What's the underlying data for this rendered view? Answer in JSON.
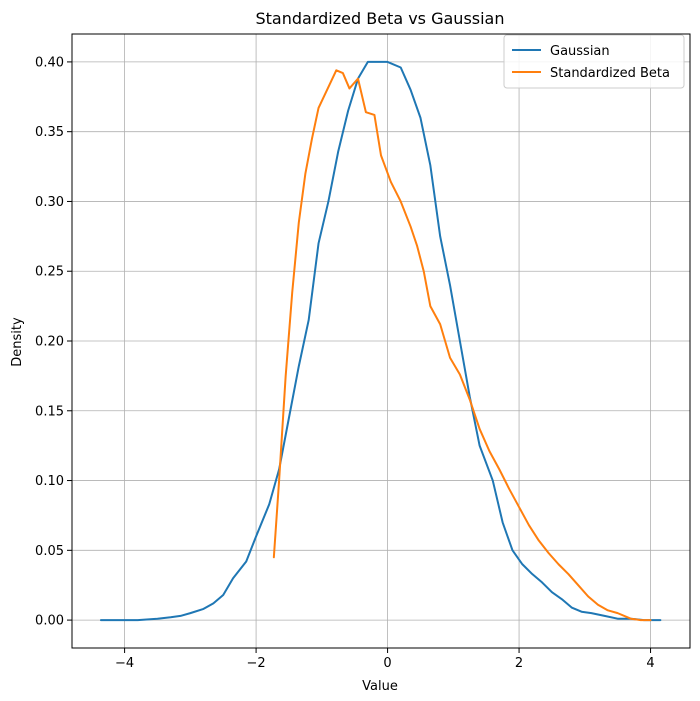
{
  "chart_data": {
    "type": "line",
    "title": "Standardized Beta vs Gaussian",
    "xlabel": "Value",
    "ylabel": "Density",
    "xlim": [
      -4.8,
      4.6
    ],
    "ylim": [
      -0.02,
      0.42
    ],
    "x_ticks": [
      -4,
      -2,
      0,
      2,
      4
    ],
    "x_tick_labels": [
      "−4",
      "−2",
      "0",
      "2",
      "4"
    ],
    "y_ticks": [
      0.0,
      0.05,
      0.1,
      0.15,
      0.2,
      0.25,
      0.3,
      0.35,
      0.4
    ],
    "y_tick_labels": [
      "0.00",
      "0.05",
      "0.10",
      "0.15",
      "0.20",
      "0.25",
      "0.30",
      "0.35",
      "0.40"
    ],
    "grid": true,
    "legend_position": "top-right",
    "series": [
      {
        "name": "Gaussian",
        "color": "#1f77b4",
        "points": [
          [
            -4.36,
            0.0
          ],
          [
            -4.0,
            0.0
          ],
          [
            -3.8,
            0.0
          ],
          [
            -3.5,
            0.001
          ],
          [
            -3.3,
            0.002
          ],
          [
            -3.15,
            0.003
          ],
          [
            -3.0,
            0.005
          ],
          [
            -2.8,
            0.008
          ],
          [
            -2.65,
            0.012
          ],
          [
            -2.5,
            0.018
          ],
          [
            -2.35,
            0.03
          ],
          [
            -2.15,
            0.042
          ],
          [
            -2.0,
            0.06
          ],
          [
            -1.8,
            0.083
          ],
          [
            -1.65,
            0.108
          ],
          [
            -1.5,
            0.145
          ],
          [
            -1.35,
            0.182
          ],
          [
            -1.2,
            0.215
          ],
          [
            -1.05,
            0.27
          ],
          [
            -0.9,
            0.3
          ],
          [
            -0.75,
            0.336
          ],
          [
            -0.6,
            0.365
          ],
          [
            -0.45,
            0.388
          ],
          [
            -0.3,
            0.4
          ],
          [
            -0.15,
            0.4
          ],
          [
            0.0,
            0.4
          ],
          [
            0.2,
            0.396
          ],
          [
            0.35,
            0.38
          ],
          [
            0.5,
            0.36
          ],
          [
            0.65,
            0.326
          ],
          [
            0.8,
            0.275
          ],
          [
            0.95,
            0.24
          ],
          [
            1.1,
            0.2
          ],
          [
            1.25,
            0.16
          ],
          [
            1.4,
            0.125
          ],
          [
            1.6,
            0.1
          ],
          [
            1.75,
            0.07
          ],
          [
            1.9,
            0.05
          ],
          [
            2.05,
            0.04
          ],
          [
            2.2,
            0.033
          ],
          [
            2.35,
            0.027
          ],
          [
            2.5,
            0.02
          ],
          [
            2.65,
            0.015
          ],
          [
            2.8,
            0.009
          ],
          [
            2.95,
            0.006
          ],
          [
            3.1,
            0.005
          ],
          [
            3.3,
            0.003
          ],
          [
            3.5,
            0.001
          ],
          [
            3.7,
            0.001
          ],
          [
            3.9,
            0.0
          ],
          [
            4.15,
            0.0
          ]
        ]
      },
      {
        "name": "Standardized Beta",
        "color": "#ff7f0e",
        "points": [
          [
            -1.73,
            0.045
          ],
          [
            -1.65,
            0.1
          ],
          [
            -1.55,
            0.175
          ],
          [
            -1.45,
            0.235
          ],
          [
            -1.35,
            0.285
          ],
          [
            -1.25,
            0.32
          ],
          [
            -1.15,
            0.345
          ],
          [
            -1.05,
            0.367
          ],
          [
            -0.9,
            0.382
          ],
          [
            -0.78,
            0.394
          ],
          [
            -0.68,
            0.392
          ],
          [
            -0.58,
            0.381
          ],
          [
            -0.45,
            0.388
          ],
          [
            -0.33,
            0.364
          ],
          [
            -0.2,
            0.362
          ],
          [
            -0.1,
            0.333
          ],
          [
            0.05,
            0.314
          ],
          [
            0.2,
            0.3
          ],
          [
            0.35,
            0.282
          ],
          [
            0.45,
            0.268
          ],
          [
            0.55,
            0.25
          ],
          [
            0.65,
            0.225
          ],
          [
            0.8,
            0.212
          ],
          [
            0.95,
            0.188
          ],
          [
            1.1,
            0.176
          ],
          [
            1.25,
            0.158
          ],
          [
            1.4,
            0.137
          ],
          [
            1.55,
            0.121
          ],
          [
            1.7,
            0.108
          ],
          [
            1.85,
            0.094
          ],
          [
            2.0,
            0.081
          ],
          [
            2.15,
            0.068
          ],
          [
            2.3,
            0.057
          ],
          [
            2.45,
            0.048
          ],
          [
            2.6,
            0.04
          ],
          [
            2.75,
            0.033
          ],
          [
            2.9,
            0.025
          ],
          [
            3.05,
            0.017
          ],
          [
            3.2,
            0.011
          ],
          [
            3.35,
            0.007
          ],
          [
            3.5,
            0.005
          ],
          [
            3.7,
            0.001
          ],
          [
            3.85,
            0.0
          ],
          [
            4.0,
            0.0
          ]
        ]
      }
    ]
  }
}
